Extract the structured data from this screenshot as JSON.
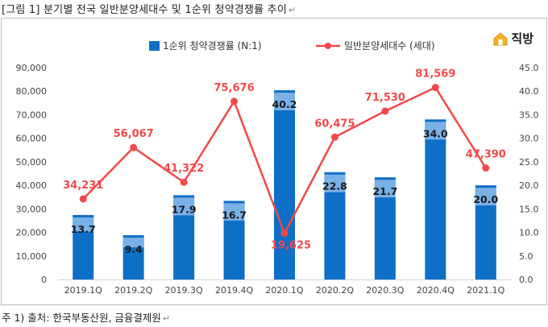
{
  "caption": "[그림 1] 분기별 전국 일반분양세대수 및 1순위 청약경쟁률 추이",
  "paragraph_mark": "↵",
  "brand": {
    "name": "직방",
    "color": "#e8a317"
  },
  "footer": "주 1) 출처: 한국부동산원, 금융결제원",
  "colors": {
    "bar_dark": "#0d6fc6",
    "bar_light": "#79b0e6",
    "line": "#f0494b",
    "line_label": "#f0494b",
    "bar_label": "#1a1a1a"
  },
  "chart_data": {
    "type": "bar",
    "categories": [
      "2019.1Q",
      "2019.2Q",
      "2019.3Q",
      "2019.4Q",
      "2020.1Q",
      "2020.2Q",
      "2020.3Q",
      "2020.4Q",
      "2021.1Q"
    ],
    "series": [
      {
        "name": "1순위 청약경쟁률 (N:1)",
        "type": "bar",
        "axis": "right",
        "values": [
          13.7,
          9.4,
          17.9,
          16.7,
          40.2,
          22.8,
          21.7,
          34.0,
          20.0
        ],
        "labels": [
          "13.7",
          "9.4",
          "17.9",
          "16.7",
          "40.2",
          "22.8",
          "21.7",
          "34.0",
          "20.0"
        ]
      },
      {
        "name": "일반분양세대수 (세대)",
        "type": "line",
        "axis": "left",
        "values": [
          34231,
          56067,
          41322,
          75676,
          19625,
          60475,
          71530,
          81569,
          47390
        ],
        "labels": [
          "34,231",
          "56,067",
          "41,322",
          "75,676",
          "19,625",
          "60,475",
          "71,530",
          "81,569",
          "47,390"
        ]
      }
    ],
    "y_left": {
      "min": 0,
      "max": 90000,
      "ticks": [
        "0",
        "10,000",
        "20,000",
        "30,000",
        "40,000",
        "50,000",
        "60,000",
        "70,000",
        "80,000",
        "90,000"
      ]
    },
    "y_right": {
      "min": 0,
      "max": 45,
      "ticks": [
        "0.0",
        "5.0",
        "10.0",
        "15.0",
        "20.0",
        "25.0",
        "30.0",
        "35.0",
        "40.0",
        "45.0"
      ]
    },
    "legend_position": "top",
    "grid": false
  }
}
